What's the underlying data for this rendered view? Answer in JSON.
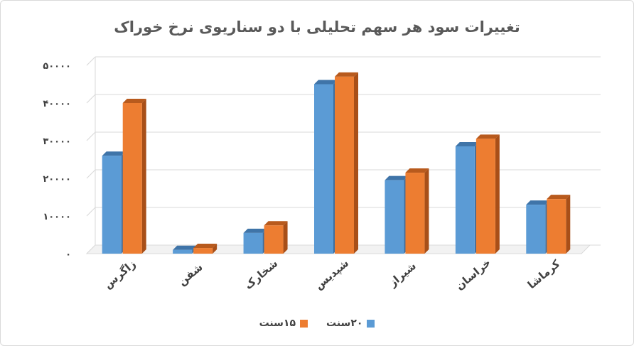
{
  "chart_data": {
    "type": "bar",
    "title": "تغییرات سود هر سهم تحلیلی با دو سناریوی نرخ خوراک",
    "categories": [
      "زاگرس",
      "شفن",
      "شخارک",
      "شپدیس",
      "شیراز",
      "خراسان",
      "کرماشا"
    ],
    "series": [
      {
        "name": "۲۰سنت",
        "color": "#5b9bd5",
        "side": "#3d6ea0",
        "top": "#3f74a8",
        "values": [
          26000,
          1000,
          5500,
          45000,
          19500,
          28500,
          13000
        ]
      },
      {
        "name": "۱۵سنت",
        "color": "#ed7d31",
        "side": "#a84f18",
        "top": "#b85a1d",
        "values": [
          40000,
          1500,
          7500,
          47000,
          21500,
          30500,
          14500
        ]
      }
    ],
    "ylim": [
      0,
      50000
    ],
    "yticks": [
      "۰",
      "۱۰۰۰۰",
      "۲۰۰۰۰",
      "۳۰۰۰۰",
      "۴۰۰۰۰",
      "۵۰۰۰۰"
    ],
    "grid": true,
    "legend_position": "bottom"
  }
}
